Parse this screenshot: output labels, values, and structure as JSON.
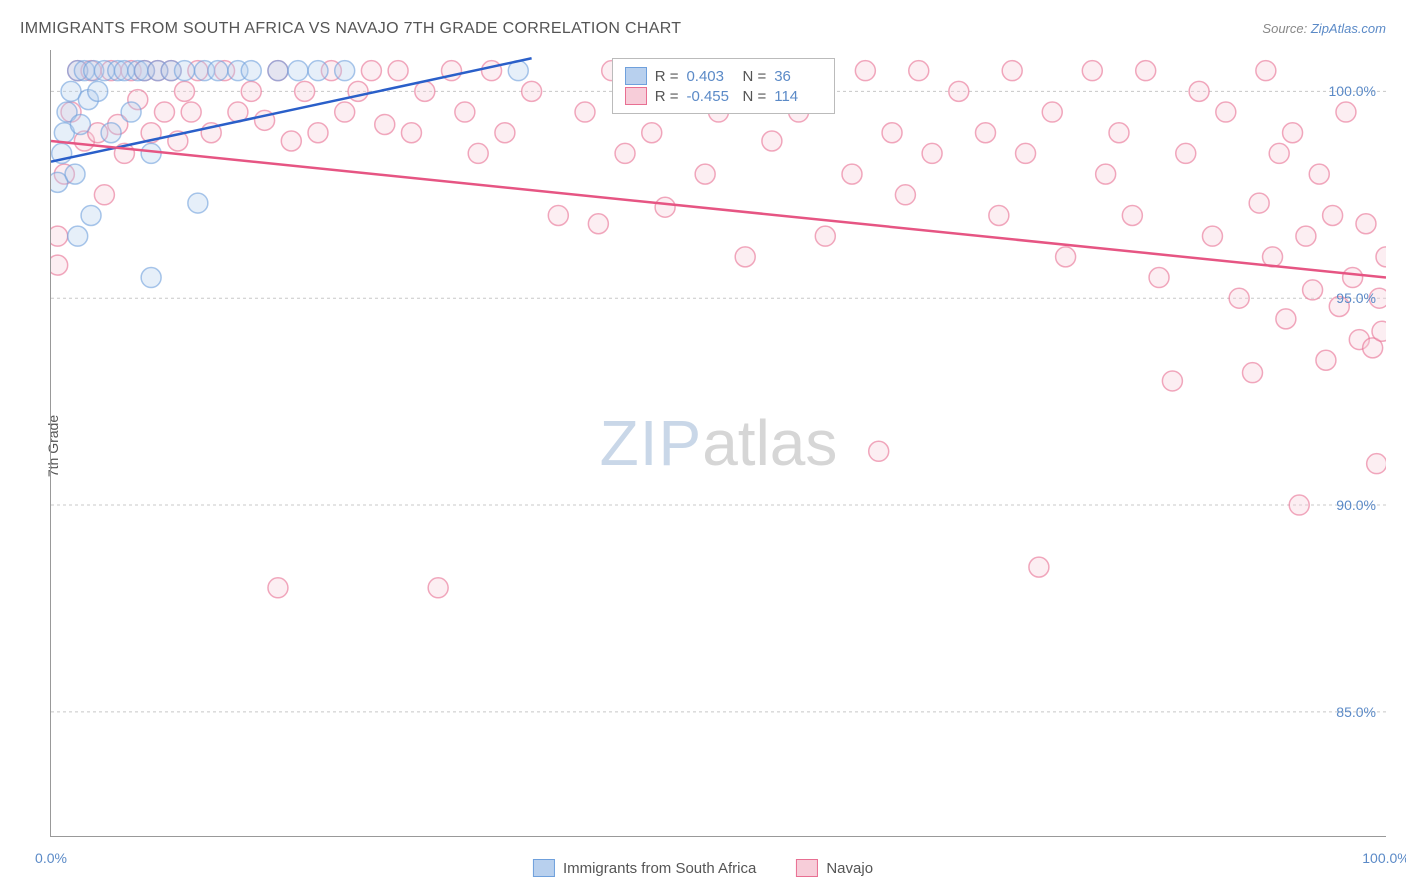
{
  "title": "IMMIGRANTS FROM SOUTH AFRICA VS NAVAJO 7TH GRADE CORRELATION CHART",
  "source_label": "Source:",
  "source_name": "ZipAtlas.com",
  "ylabel": "7th Grade",
  "watermark_a": "ZIP",
  "watermark_b": "atlas",
  "chart": {
    "type": "scatter",
    "background_color": "#ffffff",
    "grid_color": "#c8c8c8",
    "axis_color": "#999999",
    "tick_label_color": "#5b8ac7",
    "xlim": [
      0,
      100
    ],
    "ylim": [
      82,
      101
    ],
    "yticks": [
      85,
      90,
      95,
      100
    ],
    "ytick_labels": [
      "85.0%",
      "90.0%",
      "95.0%",
      "100.0%"
    ],
    "xticks": [
      0,
      12,
      24,
      36,
      48,
      60,
      72,
      84,
      100
    ],
    "xtick_labels_shown": {
      "0": "0.0%",
      "100": "100.0%"
    },
    "marker_opacity": 0.35,
    "marker_radius": 10,
    "trend_line_width": 2.5,
    "series": [
      {
        "name": "Immigrants from South Africa",
        "color_fill": "#b8d0ee",
        "color_stroke": "#6fa0dc",
        "trend_color": "#2a5fc9",
        "R": "0.403",
        "N": "36",
        "trend": {
          "x1": 0,
          "y1": 98.3,
          "x2": 36,
          "y2": 100.8
        },
        "points": [
          [
            0.5,
            97.8
          ],
          [
            0.8,
            98.5
          ],
          [
            1.0,
            99.0
          ],
          [
            1.2,
            99.5
          ],
          [
            1.5,
            100.0
          ],
          [
            1.8,
            98.0
          ],
          [
            2.0,
            100.5
          ],
          [
            2.2,
            99.2
          ],
          [
            2.5,
            100.5
          ],
          [
            2.8,
            99.8
          ],
          [
            3.0,
            97.0
          ],
          [
            3.2,
            100.5
          ],
          [
            3.5,
            100.0
          ],
          [
            4.0,
            100.5
          ],
          [
            4.5,
            99.0
          ],
          [
            5.0,
            100.5
          ],
          [
            5.5,
            100.5
          ],
          [
            6.0,
            99.5
          ],
          [
            6.5,
            100.5
          ],
          [
            7.0,
            100.5
          ],
          [
            7.5,
            98.5
          ],
          [
            8.0,
            100.5
          ],
          [
            9.0,
            100.5
          ],
          [
            10.0,
            100.5
          ],
          [
            11.0,
            97.3
          ],
          [
            11.5,
            100.5
          ],
          [
            12.5,
            100.5
          ],
          [
            14.0,
            100.5
          ],
          [
            15.0,
            100.5
          ],
          [
            17.0,
            100.5
          ],
          [
            18.5,
            100.5
          ],
          [
            20.0,
            100.5
          ],
          [
            22.0,
            100.5
          ],
          [
            7.5,
            95.5
          ],
          [
            2.0,
            96.5
          ],
          [
            35.0,
            100.5
          ]
        ]
      },
      {
        "name": "Navajo",
        "color_fill": "#f7cdd9",
        "color_stroke": "#e86f92",
        "trend_color": "#e65583",
        "R": "-0.455",
        "N": "114",
        "trend": {
          "x1": 0,
          "y1": 98.8,
          "x2": 100,
          "y2": 95.5
        },
        "points": [
          [
            0.5,
            96.5
          ],
          [
            1.0,
            98.0
          ],
          [
            1.5,
            99.5
          ],
          [
            2.0,
            100.5
          ],
          [
            2.5,
            98.8
          ],
          [
            3.0,
            100.5
          ],
          [
            3.5,
            99.0
          ],
          [
            4.0,
            97.5
          ],
          [
            4.5,
            100.5
          ],
          [
            5.0,
            99.2
          ],
          [
            5.5,
            98.5
          ],
          [
            6.0,
            100.5
          ],
          [
            6.5,
            99.8
          ],
          [
            7.0,
            100.5
          ],
          [
            7.5,
            99.0
          ],
          [
            8.0,
            100.5
          ],
          [
            8.5,
            99.5
          ],
          [
            9.0,
            100.5
          ],
          [
            9.5,
            98.8
          ],
          [
            10.0,
            100.0
          ],
          [
            10.5,
            99.5
          ],
          [
            11.0,
            100.5
          ],
          [
            12.0,
            99.0
          ],
          [
            13.0,
            100.5
          ],
          [
            14.0,
            99.5
          ],
          [
            15.0,
            100.0
          ],
          [
            16.0,
            99.3
          ],
          [
            17.0,
            100.5
          ],
          [
            18.0,
            98.8
          ],
          [
            19.0,
            100.0
          ],
          [
            20.0,
            99.0
          ],
          [
            21.0,
            100.5
          ],
          [
            22.0,
            99.5
          ],
          [
            23.0,
            100.0
          ],
          [
            24.0,
            100.5
          ],
          [
            25.0,
            99.2
          ],
          [
            26.0,
            100.5
          ],
          [
            27.0,
            99.0
          ],
          [
            28.0,
            100.0
          ],
          [
            29.0,
            88.0
          ],
          [
            30.0,
            100.5
          ],
          [
            31.0,
            99.5
          ],
          [
            32.0,
            98.5
          ],
          [
            33.0,
            100.5
          ],
          [
            34.0,
            99.0
          ],
          [
            36.0,
            100.0
          ],
          [
            38.0,
            97.0
          ],
          [
            40.0,
            99.5
          ],
          [
            41.0,
            96.8
          ],
          [
            42.0,
            100.5
          ],
          [
            43.0,
            98.5
          ],
          [
            45.0,
            99.0
          ],
          [
            46.0,
            97.2
          ],
          [
            48.0,
            100.5
          ],
          [
            49.0,
            98.0
          ],
          [
            50.0,
            99.5
          ],
          [
            52.0,
            96.0
          ],
          [
            53.0,
            100.0
          ],
          [
            54.0,
            98.8
          ],
          [
            55.0,
            100.5
          ],
          [
            56.0,
            99.5
          ],
          [
            58.0,
            96.5
          ],
          [
            60.0,
            98.0
          ],
          [
            61.0,
            100.5
          ],
          [
            62.0,
            91.3
          ],
          [
            63.0,
            99.0
          ],
          [
            64.0,
            97.5
          ],
          [
            65.0,
            100.5
          ],
          [
            66.0,
            98.5
          ],
          [
            68.0,
            100.0
          ],
          [
            70.0,
            99.0
          ],
          [
            71.0,
            97.0
          ],
          [
            72.0,
            100.5
          ],
          [
            73.0,
            98.5
          ],
          [
            74.0,
            88.5
          ],
          [
            75.0,
            99.5
          ],
          [
            76.0,
            96.0
          ],
          [
            78.0,
            100.5
          ],
          [
            79.0,
            98.0
          ],
          [
            80.0,
            99.0
          ],
          [
            81.0,
            97.0
          ],
          [
            82.0,
            100.5
          ],
          [
            83.0,
            95.5
          ],
          [
            84.0,
            93.0
          ],
          [
            85.0,
            98.5
          ],
          [
            86.0,
            100.0
          ],
          [
            87.0,
            96.5
          ],
          [
            88.0,
            99.5
          ],
          [
            89.0,
            95.0
          ],
          [
            90.0,
            93.2
          ],
          [
            90.5,
            97.3
          ],
          [
            91.0,
            100.5
          ],
          [
            91.5,
            96.0
          ],
          [
            92.0,
            98.5
          ],
          [
            92.5,
            94.5
          ],
          [
            93.0,
            99.0
          ],
          [
            93.5,
            90.0
          ],
          [
            94.0,
            96.5
          ],
          [
            94.5,
            95.2
          ],
          [
            95.0,
            98.0
          ],
          [
            95.5,
            93.5
          ],
          [
            96.0,
            97.0
          ],
          [
            96.5,
            94.8
          ],
          [
            97.0,
            99.5
          ],
          [
            97.5,
            95.5
          ],
          [
            98.0,
            94.0
          ],
          [
            98.5,
            96.8
          ],
          [
            99.0,
            93.8
          ],
          [
            99.3,
            91.0
          ],
          [
            99.5,
            95.0
          ],
          [
            99.7,
            94.2
          ],
          [
            100.0,
            96.0
          ],
          [
            17.0,
            88.0
          ],
          [
            0.5,
            95.8
          ]
        ]
      }
    ]
  },
  "legend_inset": {
    "rows": [
      {
        "swatch_fill": "#b8d0ee",
        "swatch_stroke": "#6fa0dc",
        "r_label": "R =",
        "r_val": "0.403",
        "n_label": "N =",
        "n_val": "36"
      },
      {
        "swatch_fill": "#f7cdd9",
        "swatch_stroke": "#e86f92",
        "r_label": "R =",
        "r_val": "-0.455",
        "n_label": "N =",
        "n_val": "114"
      }
    ]
  },
  "legend_bottom": [
    {
      "swatch_fill": "#b8d0ee",
      "swatch_stroke": "#6fa0dc",
      "label": "Immigrants from South Africa"
    },
    {
      "swatch_fill": "#f7cdd9",
      "swatch_stroke": "#e86f92",
      "label": "Navajo"
    }
  ]
}
